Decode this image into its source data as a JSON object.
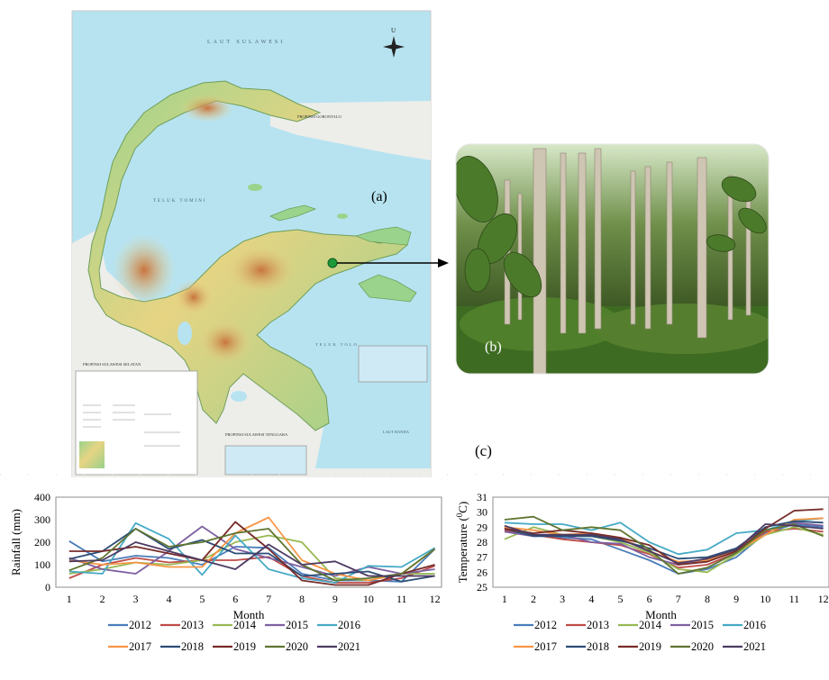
{
  "figure": {
    "panel_a_label": "(a)",
    "panel_b_label": "(b)",
    "panel_c_label": "(c)"
  },
  "map": {
    "sea_north": "LAUT SULAWESI",
    "north_arrow_letter": "U",
    "province_gorontalo": "PROPINSI GORONTALO",
    "gulf_tomini": "TELUK TOMINI",
    "province_south": "PROPINSI SULAWESI SELATAN",
    "province_southeast": "PROPINSI SULAWESI TENGGARA",
    "bay_tolo": "TELUK TOLO",
    "sea_banda": "LAUT BANDA",
    "colors": {
      "sea": "#b7e3f1",
      "land_low": "#8fcf8a",
      "land_mid": "#e8d68a",
      "land_high": "#d98a4c",
      "outside": "#e9e9e6",
      "marker": "#1f9a3a"
    }
  },
  "photo": {
    "icon": "teak-forest-photo"
  },
  "chart_data": [
    {
      "type": "line",
      "title": "",
      "xlabel": "Month",
      "ylabel": "Rainfall (mm)",
      "x": [
        1,
        2,
        3,
        4,
        5,
        6,
        7,
        8,
        9,
        10,
        11,
        12
      ],
      "xlim": [
        0.6,
        12.2
      ],
      "ylim": [
        0,
        400
      ],
      "yticks": [
        0,
        100,
        200,
        300,
        400
      ],
      "legend": "bottom",
      "series": [
        {
          "name": "2012",
          "color": "#4a7ebb",
          "values": [
            205,
            115,
            140,
            130,
            100,
            180,
            175,
            60,
            30,
            30,
            25,
            170
          ]
        },
        {
          "name": "2013",
          "color": "#be4b48",
          "values": [
            40,
            100,
            130,
            110,
            120,
            120,
            135,
            50,
            20,
            20,
            40,
            95
          ]
        },
        {
          "name": "2014",
          "color": "#98b954",
          "values": [
            60,
            80,
            110,
            100,
            120,
            200,
            230,
            200,
            40,
            30,
            60,
            60
          ]
        },
        {
          "name": "2015",
          "color": "#7d60a0",
          "values": [
            130,
            80,
            60,
            160,
            270,
            170,
            130,
            90,
            50,
            90,
            60,
            80
          ]
        },
        {
          "name": "2016",
          "color": "#46aac5",
          "values": [
            70,
            60,
            285,
            215,
            55,
            230,
            80,
            40,
            20,
            95,
            90,
            175
          ]
        },
        {
          "name": "2017",
          "color": "#f79646",
          "values": [
            120,
            100,
            110,
            90,
            90,
            240,
            310,
            120,
            60,
            30,
            60,
            170
          ]
        },
        {
          "name": "2018",
          "color": "#2c4d75",
          "values": [
            125,
            160,
            260,
            170,
            210,
            150,
            150,
            50,
            60,
            70,
            25,
            50
          ]
        },
        {
          "name": "2019",
          "color": "#772c2a",
          "values": [
            160,
            160,
            180,
            150,
            120,
            290,
            170,
            30,
            10,
            10,
            60,
            100
          ]
        },
        {
          "name": "2020",
          "color": "#5f7530",
          "values": [
            75,
            130,
            260,
            180,
            200,
            240,
            260,
            100,
            30,
            40,
            60,
            170
          ]
        },
        {
          "name": "2021",
          "color": "#4d3b62",
          "values": [
            115,
            120,
            200,
            160,
            120,
            80,
            190,
            100,
            115,
            50,
            50,
            50
          ]
        }
      ]
    },
    {
      "type": "line",
      "title": "",
      "xlabel": "Month",
      "ylabel": "Temperature (0C)",
      "x": [
        1,
        2,
        3,
        4,
        5,
        6,
        7,
        8,
        9,
        10,
        11,
        12
      ],
      "xlim": [
        0.6,
        12.2
      ],
      "ylim": [
        25,
        31
      ],
      "yticks": [
        25,
        26,
        27,
        28,
        29,
        30,
        31
      ],
      "legend": "bottom",
      "series": [
        {
          "name": "2012",
          "color": "#4a7ebb",
          "values": [
            29.0,
            28.5,
            28.3,
            28.2,
            27.5,
            26.8,
            25.9,
            26.2,
            27.0,
            28.6,
            29.2,
            29.0
          ]
        },
        {
          "name": "2013",
          "color": "#be4b48",
          "values": [
            28.8,
            28.5,
            28.2,
            28.0,
            27.8,
            27.2,
            26.3,
            26.5,
            27.3,
            28.7,
            28.9,
            28.7
          ]
        },
        {
          "name": "2014",
          "color": "#98b954",
          "values": [
            28.2,
            29.0,
            28.5,
            28.4,
            28.0,
            27.3,
            26.2,
            26.0,
            27.2,
            28.5,
            29.0,
            28.5
          ]
        },
        {
          "name": "2015",
          "color": "#7d60a0",
          "values": [
            28.7,
            28.4,
            28.5,
            28.0,
            27.9,
            27.0,
            26.5,
            26.8,
            27.5,
            28.8,
            29.3,
            29.1
          ]
        },
        {
          "name": "2016",
          "color": "#46aac5",
          "values": [
            29.3,
            29.2,
            29.2,
            28.8,
            29.3,
            28.0,
            27.2,
            27.5,
            28.6,
            28.8,
            29.4,
            29.6
          ]
        },
        {
          "name": "2017",
          "color": "#f79646",
          "values": [
            29.0,
            28.8,
            28.5,
            28.6,
            28.3,
            27.4,
            26.7,
            26.8,
            27.4,
            28.5,
            29.5,
            29.6
          ]
        },
        {
          "name": "2018",
          "color": "#2c4d75",
          "values": [
            28.9,
            28.4,
            28.4,
            28.4,
            28.1,
            27.6,
            26.9,
            27.0,
            27.6,
            29.0,
            29.4,
            29.3
          ]
        },
        {
          "name": "2019",
          "color": "#772c2a",
          "values": [
            28.9,
            28.6,
            28.8,
            28.6,
            28.3,
            27.8,
            26.5,
            26.7,
            27.4,
            28.9,
            30.1,
            30.2
          ]
        },
        {
          "name": "2020",
          "color": "#5f7530",
          "values": [
            29.5,
            29.7,
            28.8,
            29.0,
            28.8,
            27.5,
            25.9,
            26.3,
            27.3,
            28.8,
            29.2,
            28.4
          ]
        },
        {
          "name": "2021",
          "color": "#4d3b62",
          "values": [
            29.1,
            28.5,
            28.5,
            28.5,
            28.2,
            27.4,
            26.6,
            26.9,
            27.5,
            29.2,
            29.1,
            28.9
          ]
        }
      ]
    }
  ]
}
